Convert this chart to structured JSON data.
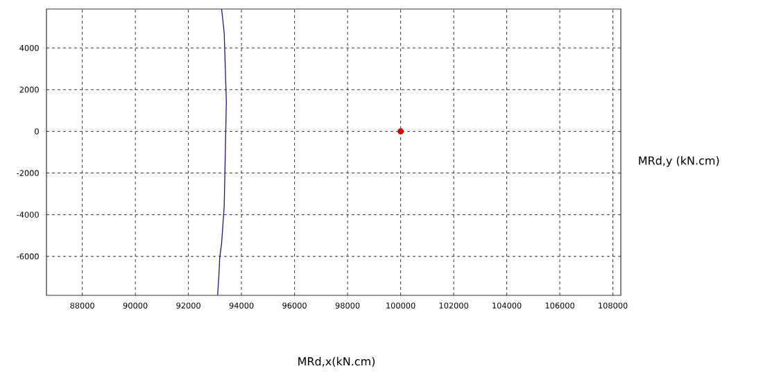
{
  "chart_data": {
    "type": "line",
    "xlabel": "MRd,x(kN.cm)",
    "ylabel": "MRd,y (kN.cm)",
    "xlim": [
      86650,
      108300
    ],
    "ylim": [
      -7870,
      5870
    ],
    "xticks": [
      88000,
      90000,
      92000,
      94000,
      96000,
      98000,
      100000,
      102000,
      104000,
      106000,
      108000
    ],
    "yticks": [
      -6000,
      -4000,
      -2000,
      0,
      2000,
      4000
    ],
    "grid": true,
    "series": [
      {
        "color": "#1c1c8c",
        "x": [
          93250,
          93300,
          93350,
          93380,
          93430,
          93380,
          93350,
          93300,
          93250,
          93180,
          93150,
          93100
        ],
        "values": [
          5870,
          5320,
          4690,
          3430,
          1430,
          -1660,
          -3560,
          -4490,
          -5390,
          -6060,
          -6890,
          -7860
        ]
      },
      {
        "type": "scatter",
        "color": "#e00000",
        "marker": "circle",
        "x": [
          100000
        ],
        "values": [
          0
        ]
      }
    ]
  }
}
